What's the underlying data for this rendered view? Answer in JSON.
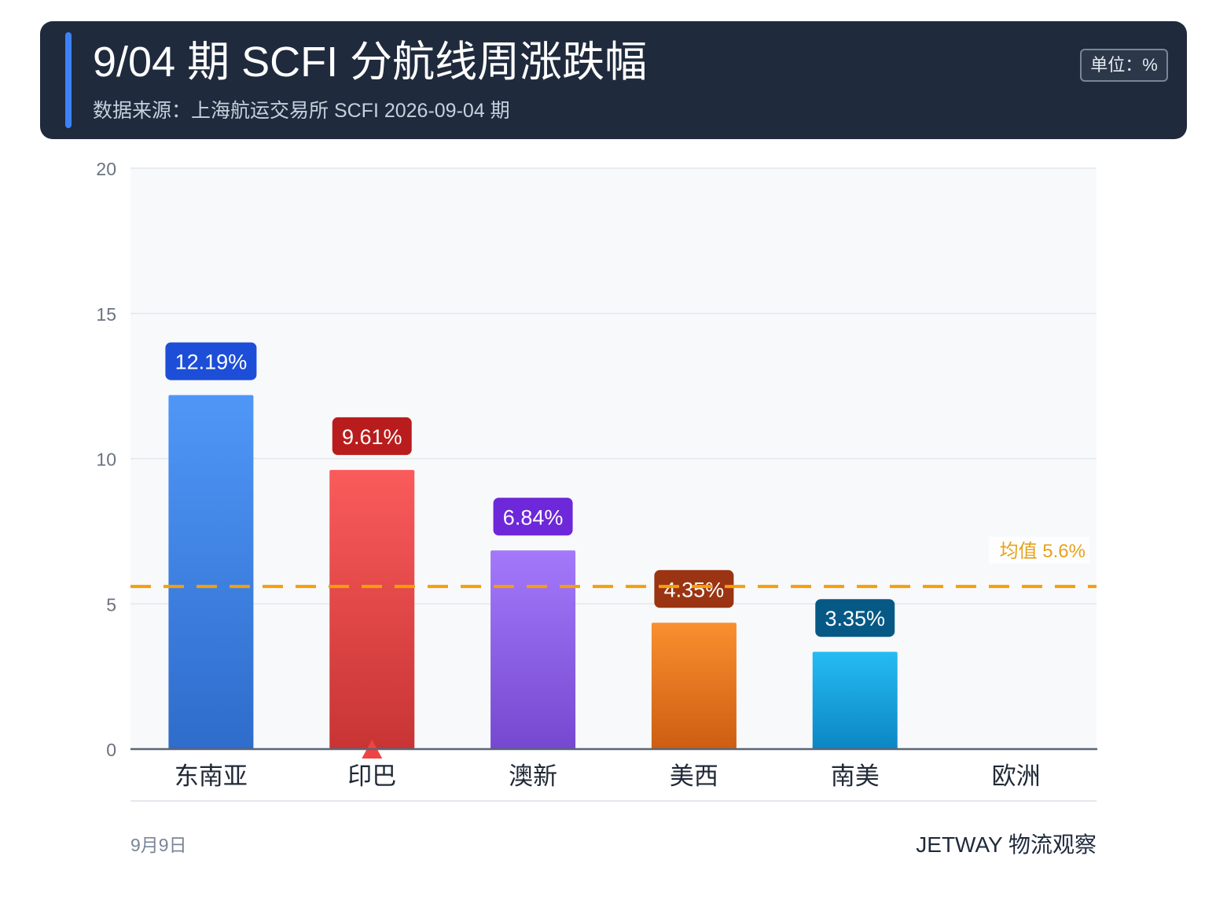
{
  "header": {
    "title": "9/04 期 SCFI 分航线周涨跌幅",
    "subtitle": "数据来源：上海航运交易所 SCFI 2026-09-04 期",
    "unit_label": "单位：%"
  },
  "footer": {
    "date": "9月9日",
    "brand": "JETWAY 物流观察"
  },
  "colors": {
    "header_bg": "#1f2a3d",
    "accent": "#3b82f6",
    "mean_line": "#f59e0b",
    "marker": "#ef4444",
    "plot_bg": "#f8f9fb",
    "grid": "#e3e7ed"
  },
  "chart_data": {
    "type": "bar",
    "title": "9/04 期 SCFI 分航线周涨跌幅",
    "xlabel": "",
    "ylabel": "",
    "ylim": [
      0,
      20
    ],
    "yticks": [
      0,
      5,
      10,
      15,
      20
    ],
    "ytick_labels": [
      "0",
      "5",
      "10",
      "15",
      "20"
    ],
    "grid": true,
    "categories": [
      "东南亚",
      "印巴",
      "澳新",
      "美西",
      "南美",
      "欧洲"
    ],
    "values": [
      12.19,
      9.61,
      6.84,
      4.35,
      3.35,
      0
    ],
    "data_labels": [
      "12.19%",
      "9.61%",
      "6.84%",
      "4.35%",
      "3.35%",
      ""
    ],
    "bar_colors": [
      {
        "top": "#4f97f7",
        "bottom": "#2f6ccb",
        "label_bg": "#1d4ed8"
      },
      {
        "top": "#fa5b5b",
        "bottom": "#c83434",
        "label_bg": "#b91c1c"
      },
      {
        "top": "#a379fa",
        "bottom": "#7648d0",
        "label_bg": "#6d28d9"
      },
      {
        "top": "#f98f2f",
        "bottom": "#cd5d12",
        "label_bg": "#9a3412"
      },
      {
        "top": "#26bbf3",
        "bottom": "#0b86c3",
        "label_bg": "#075985"
      },
      {
        "top": "#9ca3af",
        "bottom": "#6b7280",
        "label_bg": "#4b5563"
      }
    ],
    "mean": {
      "value": 5.6,
      "label": "均值 5.6%"
    },
    "marker_category": "印巴"
  }
}
